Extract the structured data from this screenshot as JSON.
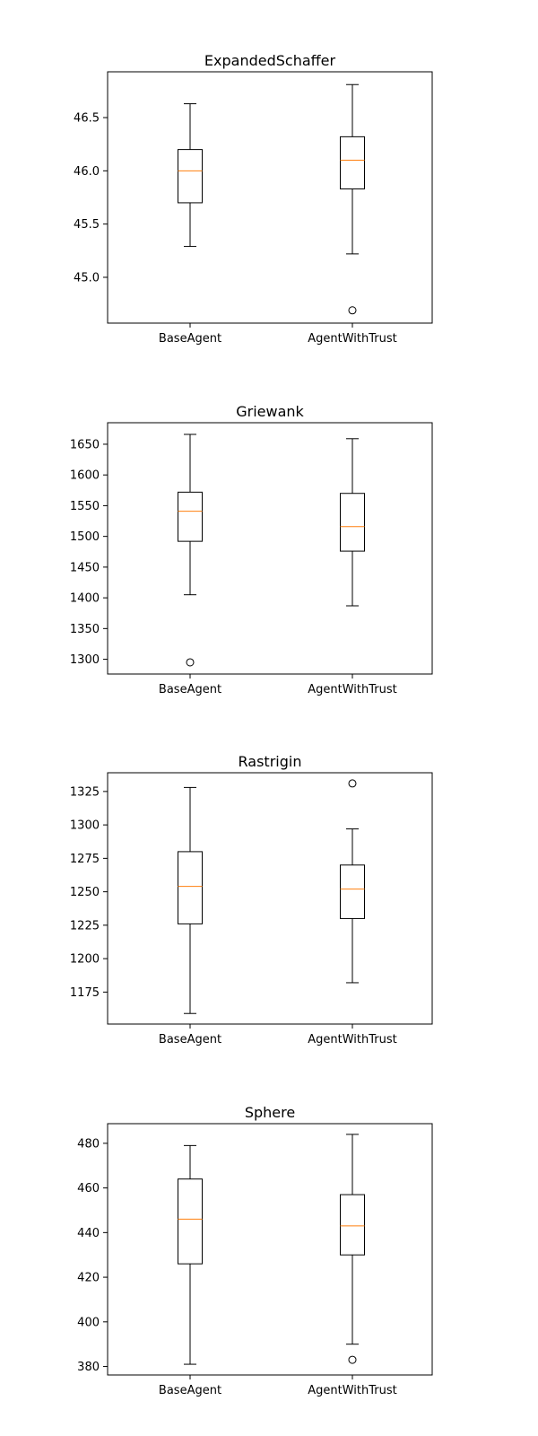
{
  "chart_data": [
    {
      "type": "box",
      "title": "ExpandedSchaffer",
      "categories": [
        "BaseAgent",
        "AgentWithTrust"
      ],
      "yticks": [
        45.0,
        45.5,
        46.0,
        46.5
      ],
      "ytick_labels": [
        "45.0",
        "45.5",
        "46.0",
        "46.5"
      ],
      "ylim": [
        44.57,
        46.93
      ],
      "boxes": [
        {
          "whisker_low": 45.29,
          "q1": 45.7,
          "median": 46.0,
          "q3": 46.2,
          "whisker_high": 46.63,
          "outliers": []
        },
        {
          "whisker_low": 45.22,
          "q1": 45.83,
          "median": 46.1,
          "q3": 46.32,
          "whisker_high": 46.81,
          "outliers": [
            44.69
          ]
        }
      ]
    },
    {
      "type": "box",
      "title": "Griewank",
      "categories": [
        "BaseAgent",
        "AgentWithTrust"
      ],
      "yticks": [
        1300,
        1350,
        1400,
        1450,
        1500,
        1550,
        1600,
        1650
      ],
      "ytick_labels": [
        "1300",
        "1350",
        "1400",
        "1450",
        "1500",
        "1550",
        "1600",
        "1650"
      ],
      "ylim": [
        1276,
        1685
      ],
      "boxes": [
        {
          "whisker_low": 1405,
          "q1": 1492,
          "median": 1541,
          "q3": 1572,
          "whisker_high": 1666,
          "outliers": [
            1295
          ]
        },
        {
          "whisker_low": 1387,
          "q1": 1476,
          "median": 1516,
          "q3": 1570,
          "whisker_high": 1659,
          "outliers": []
        }
      ]
    },
    {
      "type": "box",
      "title": "Rastrigin",
      "categories": [
        "BaseAgent",
        "AgentWithTrust"
      ],
      "yticks": [
        1175,
        1200,
        1225,
        1250,
        1275,
        1300,
        1325
      ],
      "ytick_labels": [
        "1175",
        "1200",
        "1225",
        "1250",
        "1275",
        "1300",
        "1325"
      ],
      "ylim": [
        1151.1,
        1339.0
      ],
      "boxes": [
        {
          "whisker_low": 1159,
          "q1": 1226,
          "median": 1254,
          "q3": 1280,
          "whisker_high": 1328,
          "outliers": []
        },
        {
          "whisker_low": 1182,
          "q1": 1230,
          "median": 1252,
          "q3": 1270,
          "whisker_high": 1297,
          "outliers": [
            1331
          ]
        }
      ]
    },
    {
      "type": "box",
      "title": "Sphere",
      "categories": [
        "BaseAgent",
        "AgentWithTrust"
      ],
      "yticks": [
        380,
        400,
        420,
        440,
        460,
        480
      ],
      "ytick_labels": [
        "380",
        "400",
        "420",
        "440",
        "460",
        "480"
      ],
      "ylim": [
        376.2,
        488.8
      ],
      "boxes": [
        {
          "whisker_low": 381,
          "q1": 426,
          "median": 446,
          "q3": 464,
          "whisker_high": 479,
          "outliers": []
        },
        {
          "whisker_low": 390,
          "q1": 430,
          "median": 443,
          "q3": 457,
          "whisker_high": 484,
          "outliers": [
            383
          ]
        }
      ]
    }
  ],
  "colors": {
    "axes": "#000000",
    "box": "#000000",
    "median": "#ff7f0e",
    "background": "#ffffff"
  }
}
